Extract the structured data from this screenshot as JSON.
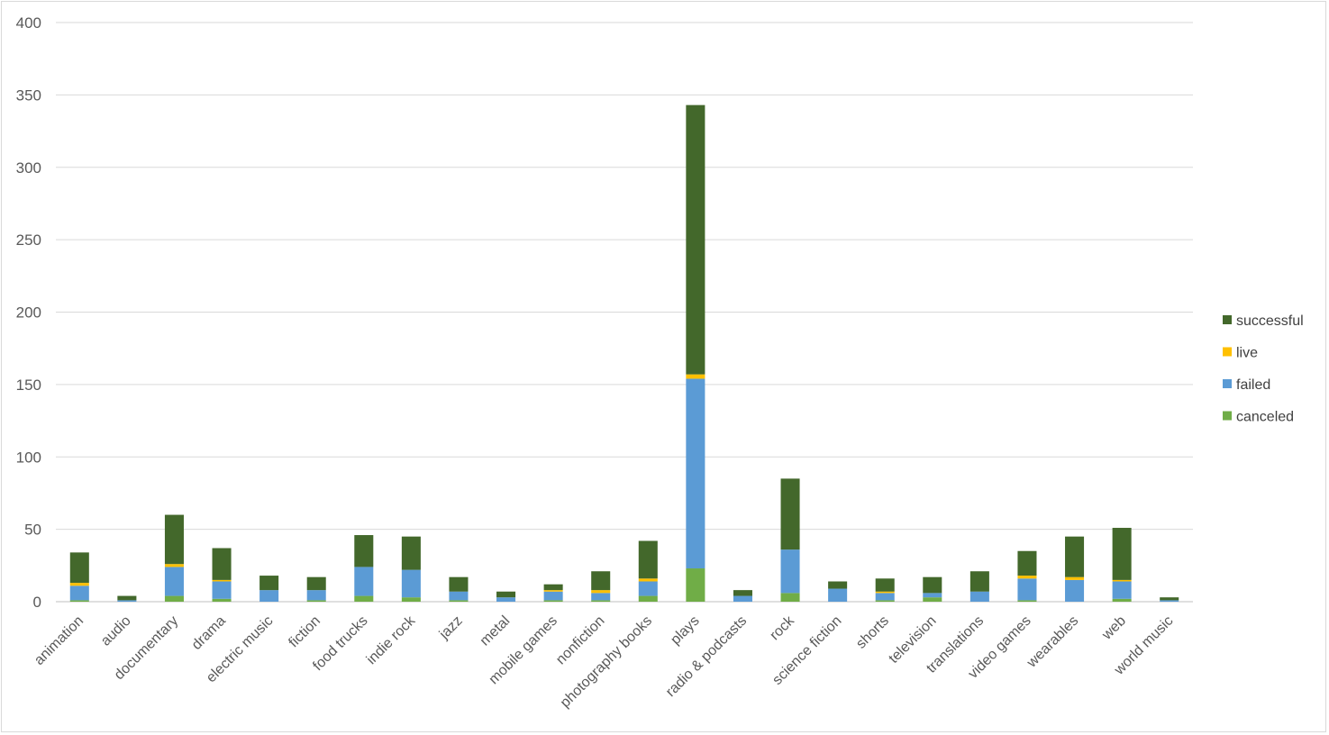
{
  "chart_data": {
    "type": "bar",
    "stacked": true,
    "categories": [
      "animation",
      "audio",
      "documentary",
      "drama",
      "electric music",
      "fiction",
      "food trucks",
      "indie rock",
      "jazz",
      "metal",
      "mobile games",
      "nonfiction",
      "photography books",
      "plays",
      "radio & podcasts",
      "rock",
      "science fiction",
      "shorts",
      "television",
      "translations",
      "video games",
      "wearables",
      "web",
      "world music"
    ],
    "series": [
      {
        "name": "canceled",
        "color": "#70ad47",
        "values": [
          1,
          0,
          4,
          2,
          0,
          1,
          4,
          3,
          1,
          0,
          1,
          1,
          4,
          23,
          0,
          6,
          0,
          1,
          3,
          0,
          1,
          0,
          2,
          0
        ]
      },
      {
        "name": "failed",
        "color": "#5b9bd5",
        "values": [
          10,
          1,
          20,
          12,
          8,
          7,
          20,
          19,
          6,
          3,
          6,
          5,
          10,
          131,
          4,
          30,
          9,
          5,
          3,
          7,
          15,
          15,
          12,
          1
        ]
      },
      {
        "name": "live",
        "color": "#ffc000",
        "values": [
          2,
          0,
          2,
          1,
          0,
          0,
          0,
          0,
          0,
          0,
          1,
          2,
          2,
          3,
          0,
          0,
          0,
          1,
          0,
          0,
          2,
          2,
          1,
          0
        ]
      },
      {
        "name": "successful",
        "color": "#43682b",
        "values": [
          21,
          3,
          34,
          22,
          10,
          9,
          22,
          23,
          10,
          4,
          4,
          13,
          26,
          186,
          4,
          49,
          5,
          9,
          11,
          14,
          17,
          28,
          36,
          2
        ]
      }
    ],
    "legend_order": [
      "successful",
      "live",
      "failed",
      "canceled"
    ],
    "ylim": [
      0,
      400
    ],
    "yticks": [
      0,
      50,
      100,
      150,
      200,
      250,
      300,
      350,
      400
    ],
    "xlabel": "",
    "ylabel": "",
    "title": "",
    "grid": true,
    "legend_position": "right"
  }
}
